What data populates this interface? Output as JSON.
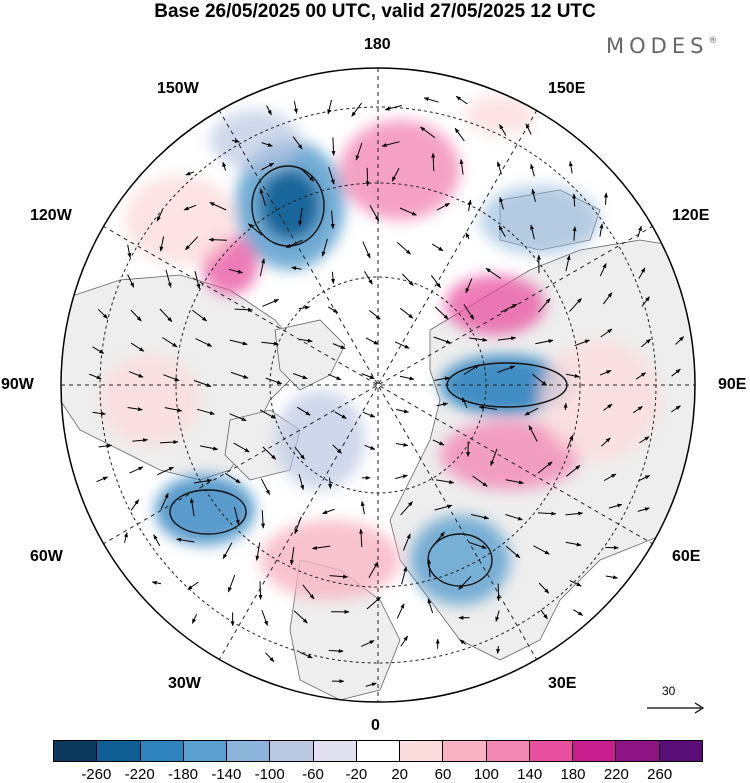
{
  "title": "Base 26/05/2025 00 UTC, valid 27/05/2025 12 UTC",
  "brand": "MODES",
  "brand_mark": "®",
  "longitude_labels": {
    "top": "180",
    "bottom": "0",
    "left": "90W",
    "right": "90E",
    "upper_left_1": "150W",
    "upper_left_2": "120W",
    "lower_left_1": "60W",
    "lower_left_2": "30W",
    "upper_right_1": "150E",
    "upper_right_2": "120E",
    "lower_right_1": "60E",
    "lower_right_2": "30E"
  },
  "reference_vector": {
    "value": "30"
  },
  "colorbar": {
    "colors": [
      "#0b3a5e",
      "#0f5f95",
      "#2f83bf",
      "#5b9fce",
      "#8db4da",
      "#bac8e2",
      "#e0e0f0",
      "#ffffff",
      "#fcdcdc",
      "#f7b3c3",
      "#f289b5",
      "#e8509f",
      "#c91e8e",
      "#8f1484",
      "#5a0e78"
    ],
    "ticks": [
      "-260",
      "-220",
      "-180",
      "-140",
      "-100",
      "-60",
      "-20",
      "20",
      "60",
      "100",
      "140",
      "180",
      "220",
      "260"
    ]
  },
  "map": {
    "projection": "north polar stereographic",
    "land_color": "#eeeeee",
    "ocean_color": "#ffffff",
    "positive_color": "#f289b5",
    "negative_color": "#2f83bf"
  }
}
